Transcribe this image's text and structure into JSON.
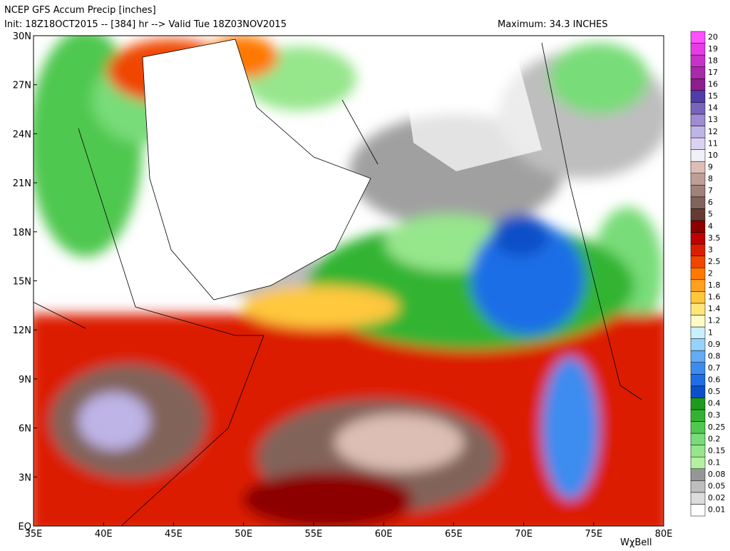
{
  "header": {
    "title": "NCEP GFS Accum Precip [inches]",
    "subtitle": "Init: 18Z18OCT2015 -- [384] hr --> Valid Tue 18Z03NOV2015",
    "maximum": "Maximum: 34.3 INCHES"
  },
  "map": {
    "lon_range": [
      35,
      80
    ],
    "lat_range": [
      0,
      30
    ],
    "lat_ticks": [
      {
        "value": 30,
        "label": "30N"
      },
      {
        "value": 27,
        "label": "27N"
      },
      {
        "value": 24,
        "label": "24N"
      },
      {
        "value": 21,
        "label": "21N"
      },
      {
        "value": 18,
        "label": "18N"
      },
      {
        "value": 15,
        "label": "15N"
      },
      {
        "value": 12,
        "label": "12N"
      },
      {
        "value": 9,
        "label": "9N"
      },
      {
        "value": 6,
        "label": "6N"
      },
      {
        "value": 3,
        "label": "3N"
      },
      {
        "value": 0,
        "label": "EQ"
      }
    ],
    "lon_ticks": [
      {
        "value": 35,
        "label": "35E"
      },
      {
        "value": 40,
        "label": "40E"
      },
      {
        "value": 45,
        "label": "45E"
      },
      {
        "value": 50,
        "label": "50E"
      },
      {
        "value": 55,
        "label": "55E"
      },
      {
        "value": 60,
        "label": "60E"
      },
      {
        "value": 65,
        "label": "65E"
      },
      {
        "value": 70,
        "label": "70E"
      },
      {
        "value": 75,
        "label": "75E"
      },
      {
        "value": 80,
        "label": "80E"
      }
    ]
  },
  "colorbar": [
    {
      "label": 0.01,
      "color": "#ffffff"
    },
    {
      "label": 0.02,
      "color": "#dcdcdc"
    },
    {
      "label": 0.05,
      "color": "#bebebe"
    },
    {
      "label": 0.08,
      "color": "#969696"
    },
    {
      "label": 0.1,
      "color": "#b4f0a0"
    },
    {
      "label": 0.15,
      "color": "#96e68c"
    },
    {
      "label": 0.2,
      "color": "#78dc78"
    },
    {
      "label": 0.25,
      "color": "#50c850"
    },
    {
      "label": 0.3,
      "color": "#32b432"
    },
    {
      "label": 0.4,
      "color": "#1e9b1e"
    },
    {
      "label": 0.5,
      "color": "#0a50c8"
    },
    {
      "label": 0.6,
      "color": "#1e6ee6"
    },
    {
      "label": 0.7,
      "color": "#3c8cf0"
    },
    {
      "label": 0.8,
      "color": "#64aaf5"
    },
    {
      "label": 0.9,
      "color": "#96d2fa"
    },
    {
      "label": 1,
      "color": "#c8f0ff"
    },
    {
      "label": 1.2,
      "color": "#fffac8"
    },
    {
      "label": 1.4,
      "color": "#ffe678"
    },
    {
      "label": 1.6,
      "color": "#ffc83c"
    },
    {
      "label": 1.8,
      "color": "#ffa01e"
    },
    {
      "label": 2,
      "color": "#ff7800"
    },
    {
      "label": 2.5,
      "color": "#f04600"
    },
    {
      "label": 3,
      "color": "#dc1e00"
    },
    {
      "label": 3.5,
      "color": "#be0000"
    },
    {
      "label": 4,
      "color": "#8c0000"
    },
    {
      "label": 5,
      "color": "#643c32"
    },
    {
      "label": 6,
      "color": "#82645a"
    },
    {
      "label": 7,
      "color": "#a08278"
    },
    {
      "label": 8,
      "color": "#be9e96"
    },
    {
      "label": 9,
      "color": "#dcbeb4"
    },
    {
      "label": 10,
      "color": "#f0f0f8"
    },
    {
      "label": 11,
      "color": "#dcd2f0"
    },
    {
      "label": 12,
      "color": "#beb4e6"
    },
    {
      "label": 13,
      "color": "#a08cd2"
    },
    {
      "label": 14,
      "color": "#7864be"
    },
    {
      "label": 15,
      "color": "#503caa"
    },
    {
      "label": 16,
      "color": "#8c1e8c"
    },
    {
      "label": 17,
      "color": "#aa28aa"
    },
    {
      "label": 18,
      "color": "#c832c8"
    },
    {
      "label": 19,
      "color": "#e63ce6"
    },
    {
      "label": 20,
      "color": "#ff50ff"
    }
  ],
  "watermark": "WχBell"
}
